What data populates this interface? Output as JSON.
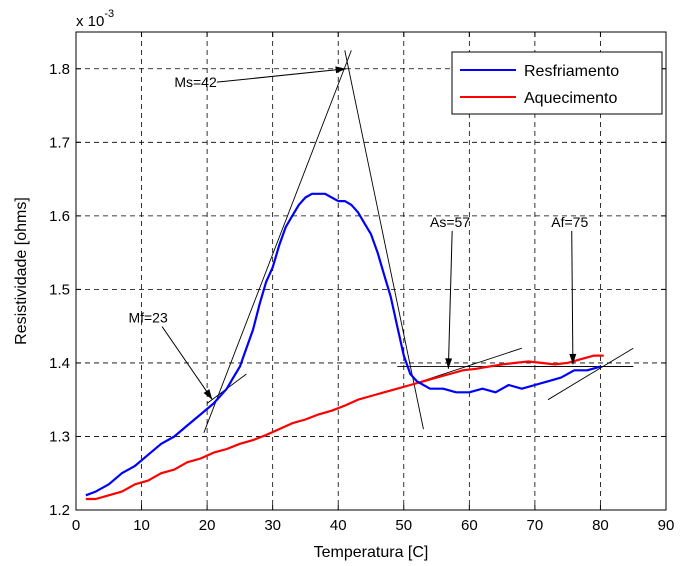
{
  "chart_data": {
    "type": "line",
    "xlabel": "Temperatura [C]",
    "ylabel": "Resistividade [ohms]",
    "multiplier": "x 10",
    "multiplier_exp": "-3",
    "xlim": [
      0,
      90
    ],
    "ylim": [
      1.2,
      1.85
    ],
    "x_ticks": [
      "0",
      "10",
      "20",
      "30",
      "40",
      "50",
      "60",
      "70",
      "80",
      "90"
    ],
    "y_ticks": [
      "1.2",
      "1.3",
      "1.4",
      "1.5",
      "1.6",
      "1.7",
      "1.8"
    ],
    "grid": true,
    "legend_position": "top-right",
    "series": [
      {
        "name": "Resfriamento",
        "color": "#0000ff",
        "x": [
          1.5,
          3,
          5,
          7,
          9,
          11,
          13,
          15,
          17,
          19,
          21,
          23,
          24,
          25,
          26,
          27,
          28,
          29,
          30,
          31,
          32,
          33,
          34,
          35,
          36,
          37,
          38,
          39,
          40,
          41,
          42,
          43,
          44,
          45,
          46,
          47,
          48,
          49,
          50,
          51,
          52,
          54,
          56,
          58,
          60,
          62,
          64,
          66,
          68,
          70,
          72,
          74,
          76,
          78,
          80
        ],
        "y": [
          1.22,
          1.225,
          1.235,
          1.25,
          1.26,
          1.275,
          1.29,
          1.3,
          1.315,
          1.33,
          1.345,
          1.365,
          1.38,
          1.395,
          1.42,
          1.445,
          1.48,
          1.51,
          1.53,
          1.56,
          1.585,
          1.6,
          1.615,
          1.625,
          1.63,
          1.63,
          1.63,
          1.625,
          1.62,
          1.62,
          1.615,
          1.605,
          1.59,
          1.575,
          1.55,
          1.52,
          1.49,
          1.45,
          1.41,
          1.385,
          1.375,
          1.365,
          1.365,
          1.36,
          1.36,
          1.365,
          1.36,
          1.37,
          1.365,
          1.37,
          1.375,
          1.38,
          1.39,
          1.39,
          1.395
        ]
      },
      {
        "name": "Aquecimento",
        "color": "#ff0000",
        "x": [
          1.5,
          3,
          5,
          7,
          9,
          11,
          13,
          15,
          17,
          19,
          21,
          23,
          25,
          27,
          29,
          31,
          33,
          35,
          37,
          39,
          41,
          43,
          45,
          47,
          49,
          51,
          53,
          55,
          57,
          59,
          61,
          63,
          65,
          67,
          69,
          71,
          73,
          75,
          77,
          79,
          80.5
        ],
        "y": [
          1.215,
          1.215,
          1.22,
          1.225,
          1.235,
          1.24,
          1.25,
          1.255,
          1.265,
          1.27,
          1.278,
          1.283,
          1.29,
          1.295,
          1.302,
          1.31,
          1.318,
          1.323,
          1.33,
          1.335,
          1.342,
          1.35,
          1.355,
          1.36,
          1.365,
          1.37,
          1.375,
          1.38,
          1.385,
          1.39,
          1.392,
          1.395,
          1.398,
          1.4,
          1.402,
          1.4,
          1.398,
          1.4,
          1.405,
          1.41,
          1.41
        ]
      }
    ],
    "tangent_lines": [
      {
        "x": [
          19.5,
          42.0
        ],
        "y": [
          1.305,
          1.825
        ]
      },
      {
        "x": [
          20.0,
          26.0
        ],
        "y": [
          1.345,
          1.385
        ]
      },
      {
        "x": [
          41.0,
          53.0
        ],
        "y": [
          1.825,
          1.31
        ]
      },
      {
        "x": [
          49.0,
          85.0
        ],
        "y": [
          1.395,
          1.395
        ]
      },
      {
        "x": [
          51.0,
          68.0
        ],
        "y": [
          1.37,
          1.42
        ]
      },
      {
        "x": [
          68.0,
          85.0
        ],
        "y": [
          1.395,
          1.395
        ]
      },
      {
        "x": [
          72.0,
          85.0
        ],
        "y": [
          1.35,
          1.42
        ]
      }
    ],
    "annotations": [
      {
        "text": "Ms=42",
        "text_x": 15,
        "text_y": 1.775,
        "arrow_to": [
          41.2,
          1.8
        ]
      },
      {
        "text": "Mf=23",
        "text_x": 8,
        "text_y": 1.455,
        "arrow_to": [
          20.8,
          1.35
        ]
      },
      {
        "text": "As=57",
        "text_x": 54,
        "text_y": 1.585,
        "arrow_to": [
          56.8,
          1.392
        ]
      },
      {
        "text": "Af=75",
        "text_x": 72.5,
        "text_y": 1.585,
        "arrow_to": [
          75.8,
          1.398
        ]
      }
    ]
  }
}
